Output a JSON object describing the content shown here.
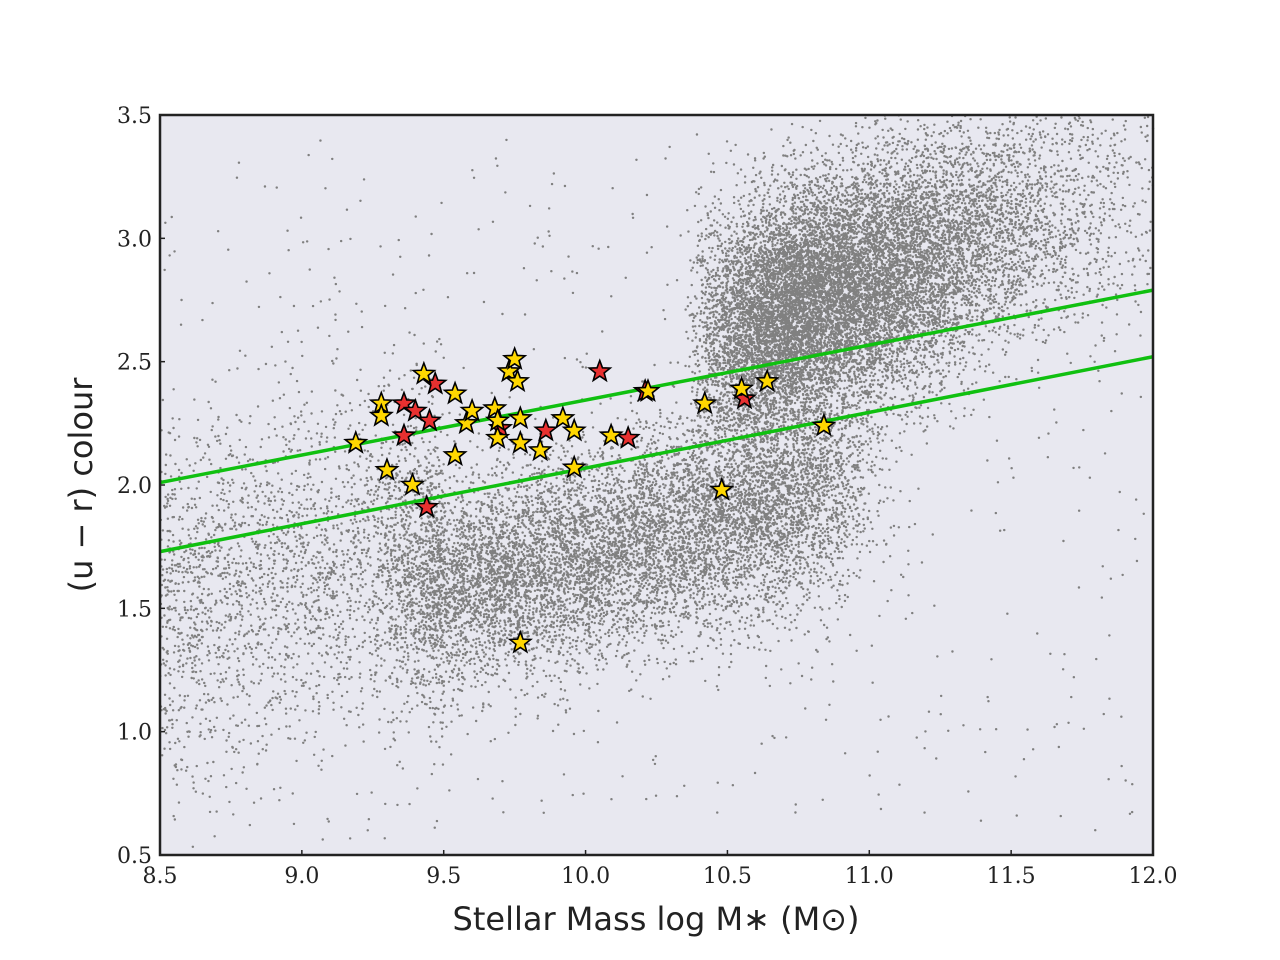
{
  "chart_data": {
    "type": "scatter",
    "title": "",
    "xlabel": "Stellar Mass log M∗ (M⊙)",
    "ylabel": "(u − r) colour",
    "xlim": [
      8.5,
      12.0
    ],
    "ylim": [
      0.5,
      3.5
    ],
    "xticks": [
      "8.5",
      "9.0",
      "9.5",
      "10.0",
      "10.5",
      "11.0",
      "11.5",
      "12.0"
    ],
    "yticks": [
      "0.5",
      "1.0",
      "1.5",
      "2.0",
      "2.5",
      "3.0",
      "3.5"
    ],
    "grid": false,
    "colors": {
      "background": "#e8e8f0",
      "frame": "#222222",
      "points": "#808080",
      "lines": "#10c010",
      "star_yellow": "#ffd700",
      "star_red": "#e83030",
      "star_edge": "#000000"
    },
    "background_population": {
      "description": "dense grey galaxy points",
      "blue_cloud": {
        "x_center": 9.9,
        "y_center": 1.75
      },
      "red_sequence": {
        "x_center": 11.1,
        "y_center": 3.0
      }
    },
    "lines": [
      {
        "x": [
          8.5,
          12.0
        ],
        "y": [
          2.01,
          2.79
        ]
      },
      {
        "x": [
          8.5,
          12.0
        ],
        "y": [
          1.73,
          2.52
        ]
      }
    ],
    "stars_yellow": [
      [
        9.19,
        2.17
      ],
      [
        9.28,
        2.33
      ],
      [
        9.28,
        2.28
      ],
      [
        9.3,
        2.06
      ],
      [
        9.39,
        2.0
      ],
      [
        9.43,
        2.45
      ],
      [
        9.54,
        2.37
      ],
      [
        9.54,
        2.12
      ],
      [
        9.58,
        2.25
      ],
      [
        9.6,
        2.3
      ],
      [
        9.68,
        2.31
      ],
      [
        9.69,
        2.26
      ],
      [
        9.69,
        2.19
      ],
      [
        9.73,
        2.46
      ],
      [
        9.75,
        2.51
      ],
      [
        9.76,
        2.42
      ],
      [
        9.77,
        2.27
      ],
      [
        9.77,
        2.17
      ],
      [
        9.84,
        2.14
      ],
      [
        9.92,
        2.27
      ],
      [
        9.96,
        2.22
      ],
      [
        9.96,
        2.07
      ],
      [
        10.09,
        2.2
      ],
      [
        10.22,
        2.38
      ],
      [
        10.42,
        2.33
      ],
      [
        10.48,
        1.98
      ],
      [
        10.55,
        2.39
      ],
      [
        10.64,
        2.42
      ],
      [
        10.84,
        2.24
      ],
      [
        9.77,
        1.36
      ]
    ],
    "stars_red": [
      [
        9.36,
        2.33
      ],
      [
        9.36,
        2.2
      ],
      [
        9.4,
        2.3
      ],
      [
        9.45,
        2.26
      ],
      [
        9.47,
        2.41
      ],
      [
        9.44,
        1.91
      ],
      [
        9.7,
        2.23
      ],
      [
        9.86,
        2.22
      ],
      [
        10.05,
        2.46
      ],
      [
        10.15,
        2.19
      ],
      [
        10.21,
        2.38
      ],
      [
        10.56,
        2.35
      ]
    ]
  }
}
